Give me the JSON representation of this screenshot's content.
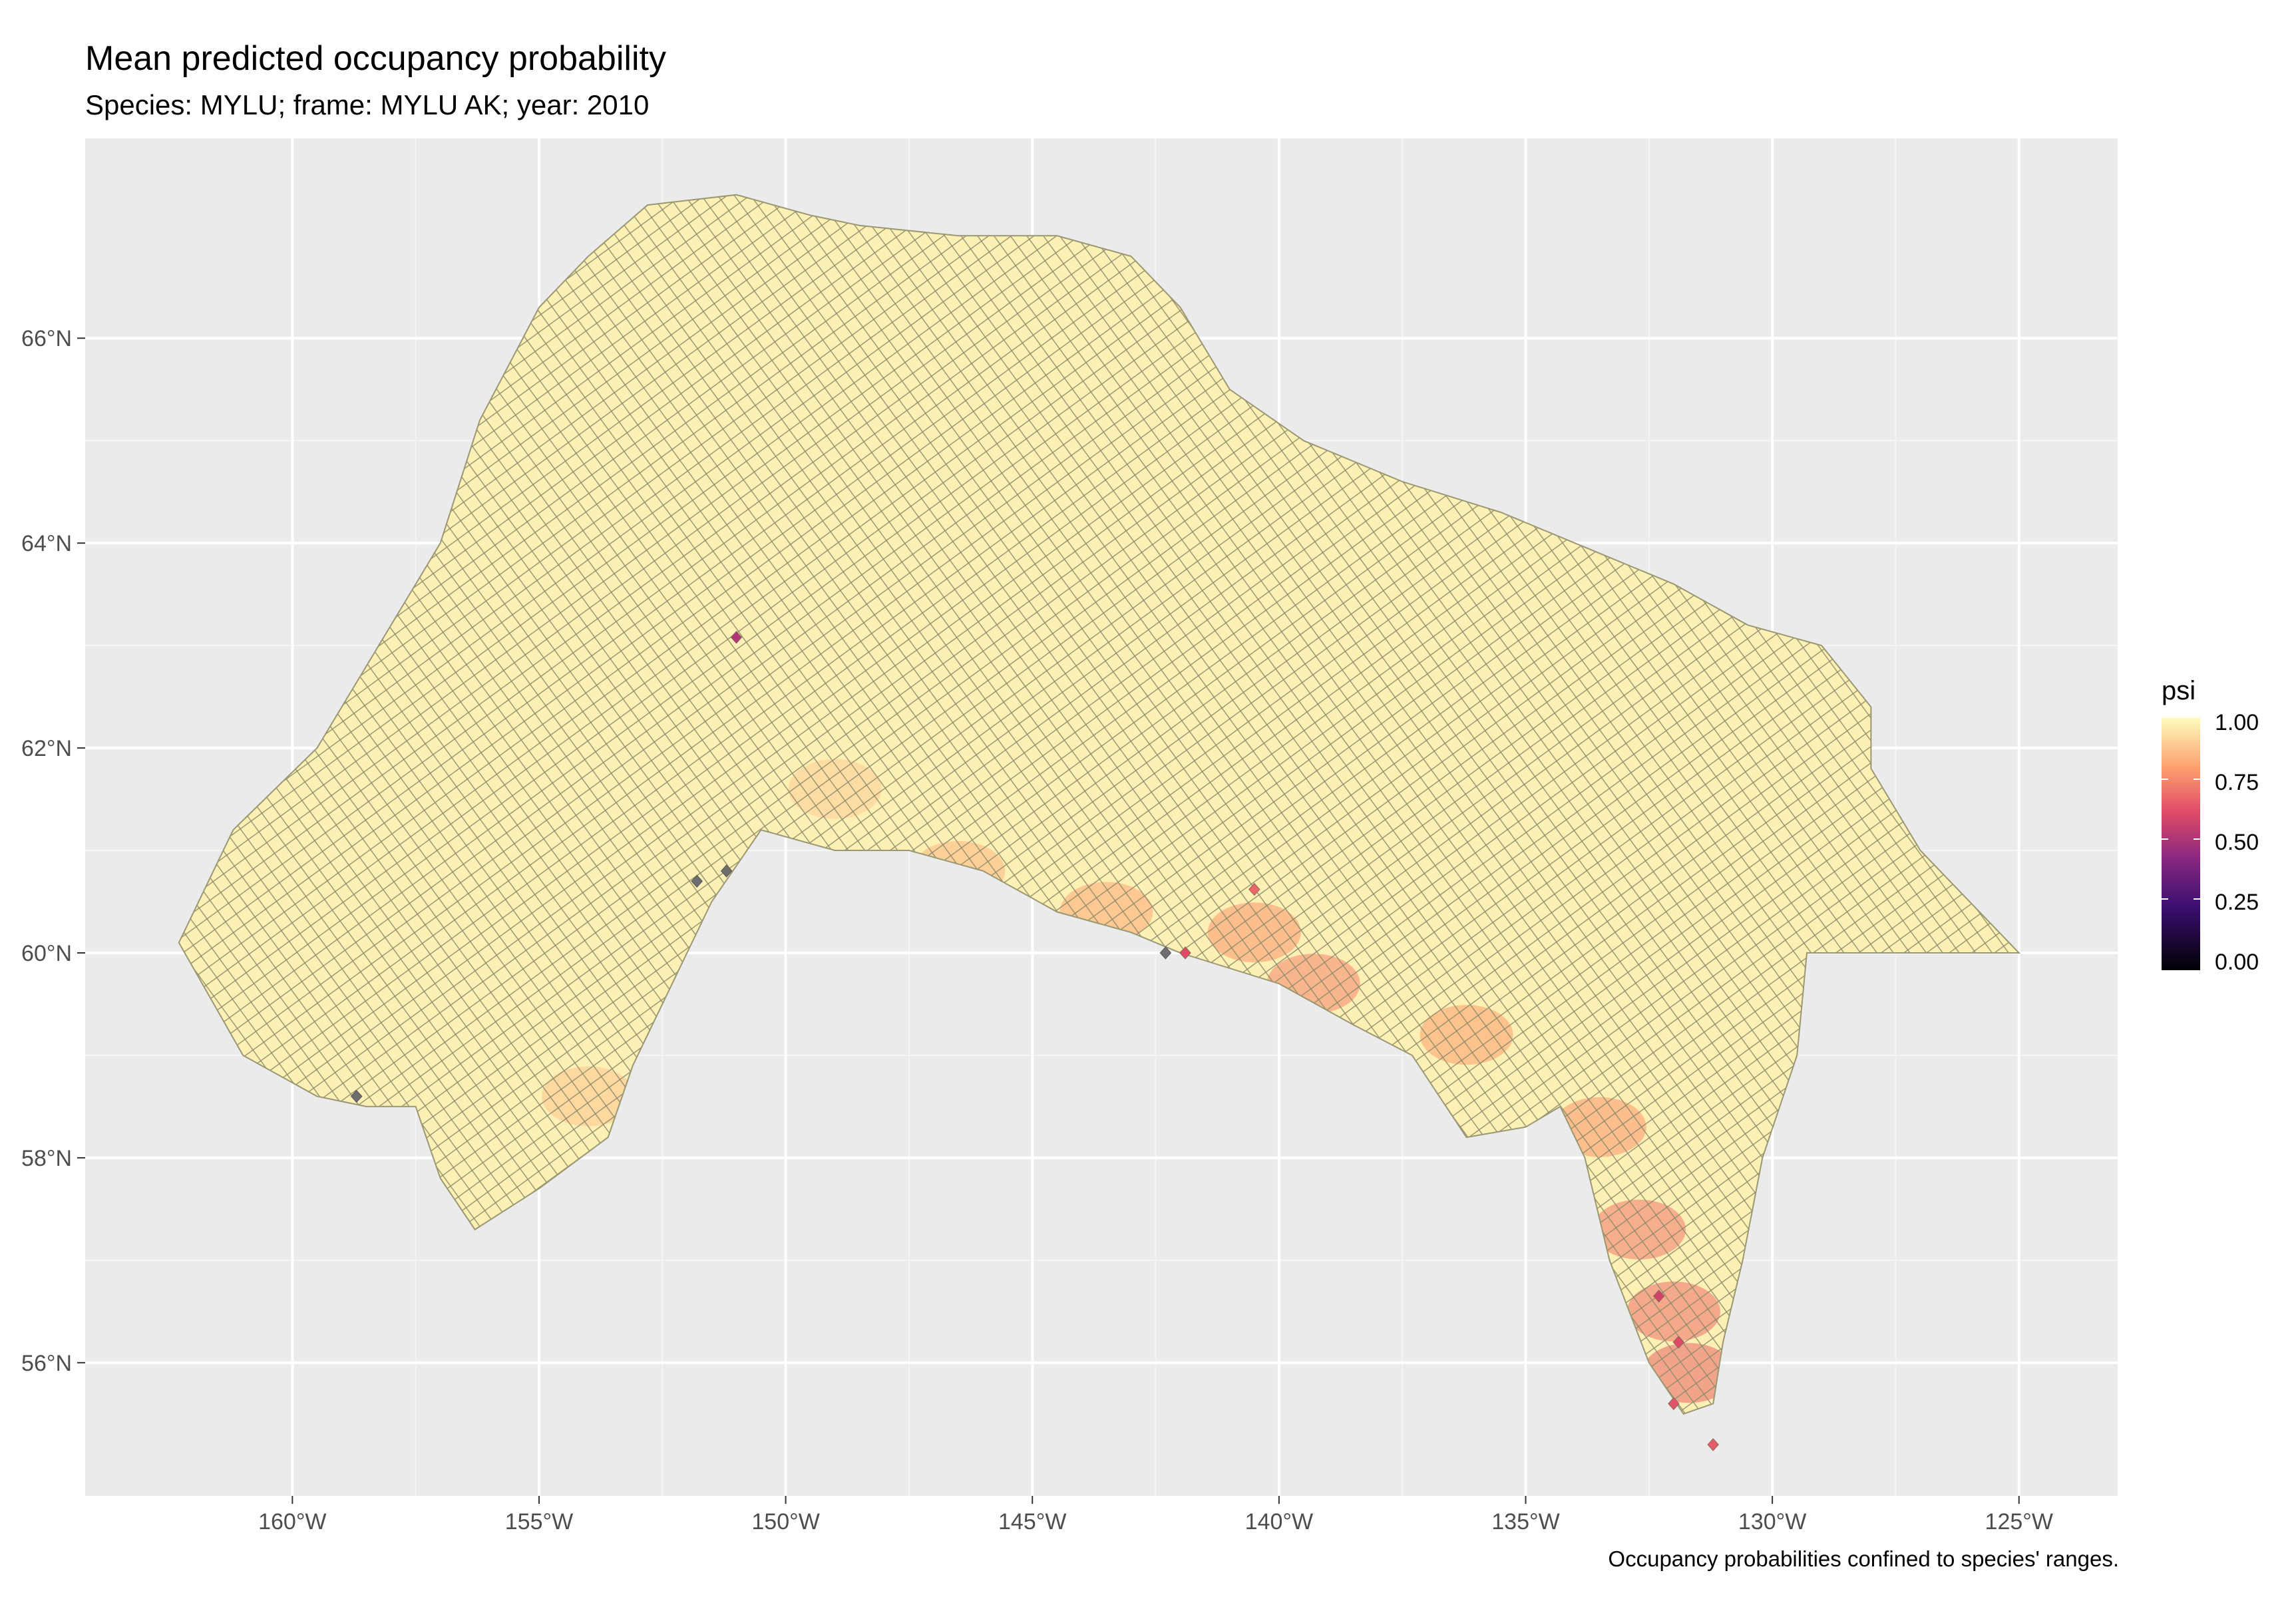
{
  "title": "Mean predicted occupancy probability",
  "subtitle": "Species: MYLU; frame: MYLU AK; year: 2010",
  "caption": "Occupancy probabilities confined to species' ranges.",
  "chart_data": {
    "type": "heatmap",
    "title": "Mean predicted occupancy probability",
    "subtitle": "Species: MYLU; frame: MYLU AK; year: 2010",
    "xlabel": "",
    "ylabel": "",
    "x_ticks": [
      {
        "value": -160,
        "label": "160°W"
      },
      {
        "value": -155,
        "label": "155°W"
      },
      {
        "value": -150,
        "label": "150°W"
      },
      {
        "value": -145,
        "label": "145°W"
      },
      {
        "value": -140,
        "label": "140°W"
      },
      {
        "value": -135,
        "label": "135°W"
      },
      {
        "value": -130,
        "label": "130°W"
      },
      {
        "value": -125,
        "label": "125°W"
      }
    ],
    "y_ticks": [
      {
        "value": 56,
        "label": "56°N"
      },
      {
        "value": 58,
        "label": "58°N"
      },
      {
        "value": 60,
        "label": "60°N"
      },
      {
        "value": 62,
        "label": "62°N"
      },
      {
        "value": 64,
        "label": "64°N"
      },
      {
        "value": 66,
        "label": "66°N"
      }
    ],
    "xlim": [
      -164.2,
      -123.0
    ],
    "ylim": [
      54.7,
      67.95
    ],
    "grid": true,
    "legend": {
      "title": "psi",
      "placement": "right",
      "breaks": [
        "1.00",
        "0.75",
        "0.50",
        "0.25",
        "0.00"
      ],
      "palette": [
        "#000004",
        "#3b0f70",
        "#8c2981",
        "#de4968",
        "#fe9f6d",
        "#fcfdbf"
      ]
    },
    "range_outline": [
      [
        -162.3,
        60.1
      ],
      [
        -161.2,
        61.2
      ],
      [
        -159.5,
        62.0
      ],
      [
        -158.0,
        63.2
      ],
      [
        -157.0,
        64.0
      ],
      [
        -156.2,
        65.2
      ],
      [
        -155.0,
        66.3
      ],
      [
        -154.0,
        66.8
      ],
      [
        -152.8,
        67.3
      ],
      [
        -151.0,
        67.4
      ],
      [
        -149.5,
        67.2
      ],
      [
        -148.5,
        67.1
      ],
      [
        -146.5,
        67.0
      ],
      [
        -144.5,
        67.0
      ],
      [
        -143.0,
        66.8
      ],
      [
        -142.0,
        66.3
      ],
      [
        -141.0,
        65.5
      ],
      [
        -139.5,
        65.0
      ],
      [
        -137.5,
        64.6
      ],
      [
        -135.5,
        64.3
      ],
      [
        -134.0,
        64.0
      ],
      [
        -132.0,
        63.6
      ],
      [
        -130.5,
        63.2
      ],
      [
        -129.0,
        63.0
      ],
      [
        -128.0,
        62.4
      ],
      [
        -128.0,
        61.8
      ],
      [
        -127.0,
        61.0
      ],
      [
        -125.0,
        60.0
      ],
      [
        -129.3,
        60.0
      ],
      [
        -129.5,
        59.0
      ],
      [
        -130.2,
        58.0
      ],
      [
        -130.6,
        57.0
      ],
      [
        -131.0,
        56.2
      ],
      [
        -131.2,
        55.6
      ],
      [
        -131.8,
        55.5
      ],
      [
        -132.5,
        56.0
      ],
      [
        -133.3,
        57.0
      ],
      [
        -133.8,
        58.0
      ],
      [
        -134.3,
        58.5
      ],
      [
        -135.0,
        58.3
      ],
      [
        -136.2,
        58.2
      ],
      [
        -137.3,
        59.0
      ],
      [
        -138.5,
        59.3
      ],
      [
        -140.0,
        59.7
      ],
      [
        -142.0,
        60.0
      ],
      [
        -143.0,
        60.2
      ],
      [
        -144.5,
        60.4
      ],
      [
        -146.0,
        60.8
      ],
      [
        -147.5,
        61.0
      ],
      [
        -149.0,
        61.0
      ],
      [
        -150.5,
        61.2
      ],
      [
        -151.5,
        60.5
      ],
      [
        -152.0,
        60.0
      ],
      [
        -152.8,
        59.2
      ],
      [
        -153.1,
        58.9
      ],
      [
        -153.6,
        58.2
      ],
      [
        -155.0,
        57.7
      ],
      [
        -156.3,
        57.3
      ],
      [
        -157.0,
        57.8
      ],
      [
        -157.5,
        58.5
      ],
      [
        -158.5,
        58.5
      ],
      [
        -159.5,
        58.6
      ],
      [
        -161.0,
        59.0
      ],
      [
        -162.3,
        60.1
      ]
    ],
    "low_value_cells": [
      {
        "lon": -151.0,
        "lat": 63.08,
        "psi": 0.55
      },
      {
        "lon": -140.5,
        "lat": 60.62,
        "psi": 0.68
      },
      {
        "lon": -141.9,
        "lat": 60.0,
        "psi": 0.62
      },
      {
        "lon": -132.3,
        "lat": 56.65,
        "psi": 0.6
      },
      {
        "lon": -131.9,
        "lat": 56.2,
        "psi": 0.62
      },
      {
        "lon": -132.0,
        "lat": 55.6,
        "psi": 0.64
      },
      {
        "lon": -131.2,
        "lat": 55.2,
        "psi": 0.66
      }
    ],
    "missing_cells": [
      {
        "lon": -158.7,
        "lat": 58.6
      },
      {
        "lon": -151.8,
        "lat": 60.7
      },
      {
        "lon": -151.2,
        "lat": 60.8
      },
      {
        "lon": -142.3,
        "lat": 60.0
      }
    ],
    "hotspot_zones": [
      {
        "lon": -140.5,
        "lat": 60.2,
        "psi": 0.78
      },
      {
        "lon": -139.3,
        "lat": 59.7,
        "psi": 0.75
      },
      {
        "lon": -136.2,
        "lat": 59.2,
        "psi": 0.8
      },
      {
        "lon": -133.5,
        "lat": 58.3,
        "psi": 0.78
      },
      {
        "lon": -132.7,
        "lat": 57.3,
        "psi": 0.72
      },
      {
        "lon": -132.0,
        "lat": 56.5,
        "psi": 0.7
      },
      {
        "lon": -131.7,
        "lat": 55.9,
        "psi": 0.68
      },
      {
        "lon": -143.5,
        "lat": 60.4,
        "psi": 0.82
      },
      {
        "lon": -146.5,
        "lat": 60.8,
        "psi": 0.85
      },
      {
        "lon": -154.0,
        "lat": 58.6,
        "psi": 0.88
      },
      {
        "lon": -149.0,
        "lat": 61.6,
        "psi": 0.9
      }
    ]
  }
}
